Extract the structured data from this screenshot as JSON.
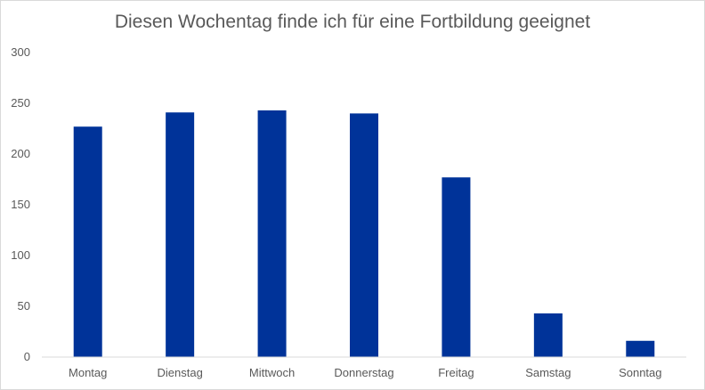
{
  "colors": {
    "bar": "#003399",
    "axis": "#d9d9d9",
    "text": "#595959"
  },
  "chart_data": {
    "type": "bar",
    "title": "Diesen Wochentag finde ich für eine Fortbildung geeignet",
    "xlabel": "",
    "ylabel": "",
    "categories": [
      "Montag",
      "Dienstag",
      "Mittwoch",
      "Donnerstag",
      "Freitag",
      "Samstag",
      "Sonntag"
    ],
    "values": [
      227,
      241,
      243,
      240,
      177,
      43,
      16
    ],
    "ylim": [
      0,
      300
    ],
    "yticks": [
      0,
      50,
      100,
      150,
      200,
      250,
      300
    ],
    "grid": false,
    "legend": "none"
  }
}
